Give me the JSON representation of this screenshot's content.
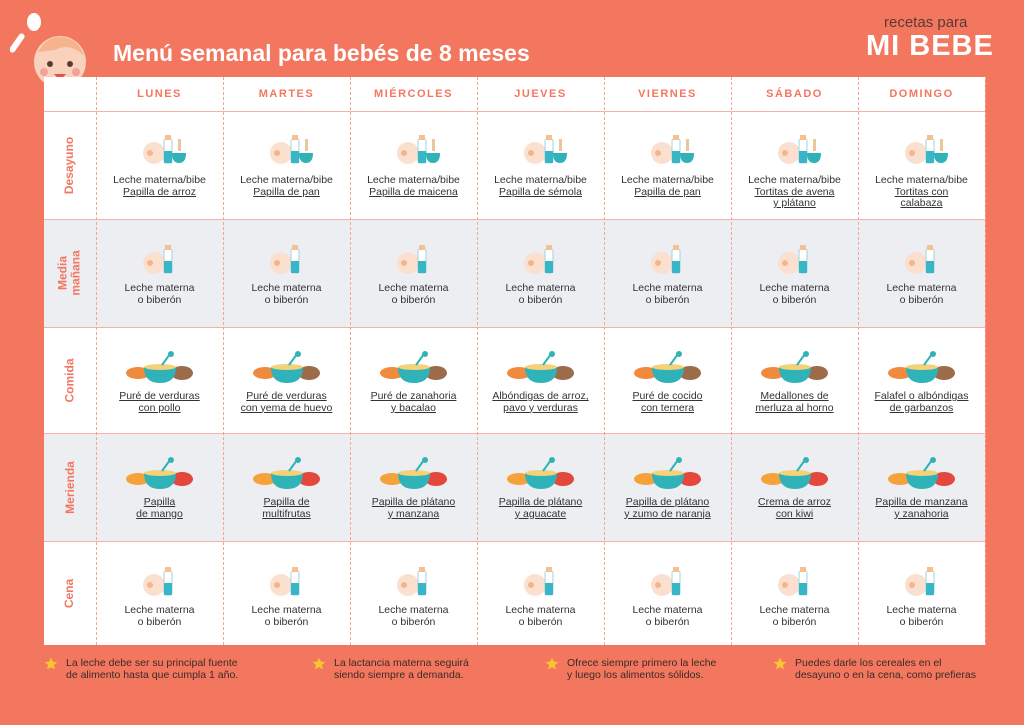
{
  "header": {
    "title": "Menú semanal para bebés de 8 meses",
    "brand_top": "recetas para",
    "brand_main": "MI BEBE"
  },
  "table": {
    "days": [
      "LUNES",
      "MARTES",
      "MIÉRCOLES",
      "JUEVES",
      "VIERNES",
      "SÁBADO",
      "DOMINGO"
    ],
    "rows": [
      {
        "meal": "Desayuno",
        "cells": [
          {
            "text": [
              "Leche materna/bibe"
            ],
            "link": [
              "Papilla de arroz"
            ]
          },
          {
            "text": [
              "Leche materna/bibe"
            ],
            "link": [
              "Papilla de pan"
            ]
          },
          {
            "text": [
              "Leche materna/bibe"
            ],
            "link": [
              "Papilla de maicena"
            ]
          },
          {
            "text": [
              "Leche materna/bibe"
            ],
            "link": [
              "Papilla de sémola"
            ]
          },
          {
            "text": [
              "Leche materna/bibe"
            ],
            "link": [
              "Papilla de pan"
            ]
          },
          {
            "text": [
              "Leche materna/bibe"
            ],
            "link": [
              "Tortitas de avena",
              "y plátano"
            ]
          },
          {
            "text": [
              "Leche materna/bibe"
            ],
            "link": [
              "Tortitas con",
              "calabaza"
            ]
          }
        ]
      },
      {
        "meal": "Media\nmañana",
        "cells": [
          {
            "text": [
              "Leche materna",
              "o biberón"
            ]
          },
          {
            "text": [
              "Leche materna",
              "o biberón"
            ]
          },
          {
            "text": [
              "Leche materna",
              "o biberón"
            ]
          },
          {
            "text": [
              "Leche materna",
              "o biberón"
            ]
          },
          {
            "text": [
              "Leche materna",
              "o biberón"
            ]
          },
          {
            "text": [
              "Leche materna",
              "o biberón"
            ]
          },
          {
            "text": [
              "Leche materna",
              "o biberón"
            ]
          }
        ]
      },
      {
        "meal": "Comida",
        "cells": [
          {
            "link": [
              "Puré de verduras",
              "con pollo"
            ]
          },
          {
            "link": [
              "Puré de verduras",
              "con yema de huevo"
            ]
          },
          {
            "link": [
              "Puré de zanahoria",
              "y bacalao"
            ]
          },
          {
            "link": [
              "Albóndigas de arroz,",
              "pavo y verduras"
            ]
          },
          {
            "link": [
              "Puré de cocido",
              "con ternera"
            ]
          },
          {
            "link": [
              "Medallones de",
              "merluza al horno"
            ]
          },
          {
            "link": [
              "Falafel o albóndigas",
              "de garbanzos"
            ]
          }
        ]
      },
      {
        "meal": "Merienda",
        "cells": [
          {
            "link": [
              "Papilla",
              "de mango"
            ]
          },
          {
            "link": [
              "Papilla de",
              "multifrutas"
            ]
          },
          {
            "link": [
              "Papilla de plátano",
              "y manzana"
            ]
          },
          {
            "link": [
              "Papilla de plátano",
              "y aguacate"
            ]
          },
          {
            "link": [
              "Papilla de plátano",
              "y zumo de naranja"
            ]
          },
          {
            "link": [
              "Crema de arroz",
              "con kiwi"
            ]
          },
          {
            "link": [
              "Papilla de manzana",
              "y zanahoria"
            ]
          }
        ]
      },
      {
        "meal": "Cena",
        "cells": [
          {
            "text": [
              "Leche materna",
              "o biberón"
            ]
          },
          {
            "text": [
              "Leche materna",
              "o biberón"
            ]
          },
          {
            "text": [
              "Leche materna",
              "o biberón"
            ]
          },
          {
            "text": [
              "Leche materna",
              "o biberón"
            ]
          },
          {
            "text": [
              "Leche materna",
              "o biberón"
            ]
          },
          {
            "text": [
              "Leche materna",
              "o biberón"
            ]
          },
          {
            "text": [
              "Leche materna",
              "o biberón"
            ]
          }
        ]
      }
    ]
  },
  "notes": [
    "La leche debe ser su principal fuente\nde alimento hasta que cumpla 1 año.",
    "La lactancia materna seguirá\nsiendo siempre a demanda.",
    "Ofrece siempre primero la leche\ny luego los alimentos sólidos.",
    "Puedes darle los cereales en el\ndesayuno o en la cena, como prefieras"
  ]
}
